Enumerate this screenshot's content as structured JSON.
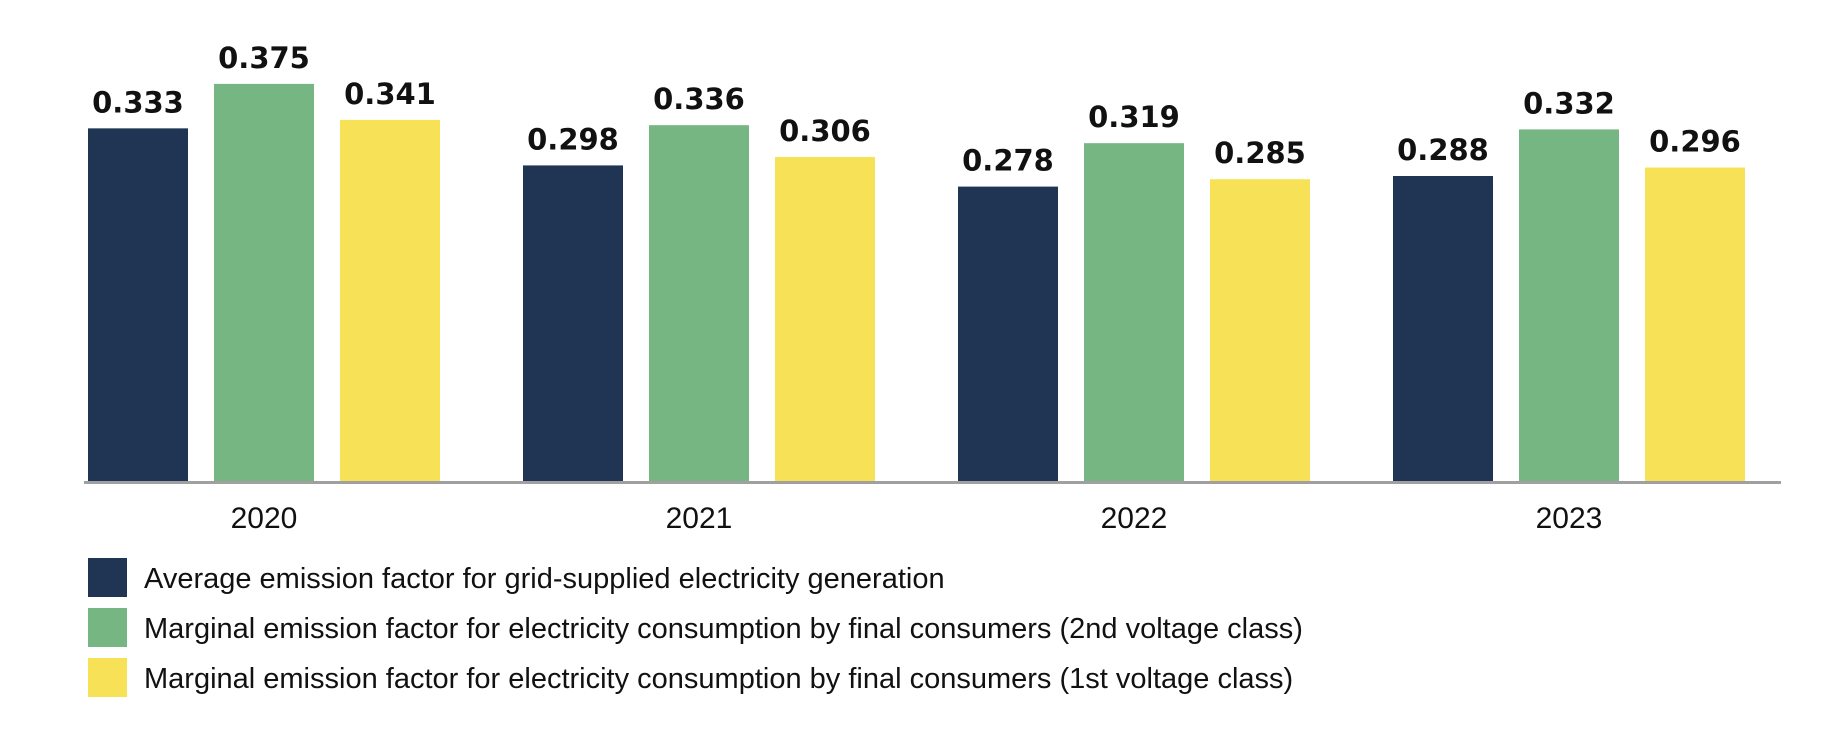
{
  "chart_data": {
    "type": "bar",
    "categories": [
      "2020",
      "2021",
      "2022",
      "2023"
    ],
    "series": [
      {
        "name": "Average emission factor for grid-supplied electricity generation",
        "color": "#203453",
        "values": [
          0.333,
          0.298,
          0.278,
          0.288
        ]
      },
      {
        "name": "Marginal emission factor for electricity consumption by final consumers (2nd voltage class)",
        "color": "#76b682",
        "values": [
          0.375,
          0.336,
          0.319,
          0.332
        ]
      },
      {
        "name": "Marginal emission factor for electricity consumption by final consumers (1st voltage class)",
        "color": "#f7e257",
        "values": [
          0.341,
          0.306,
          0.285,
          0.296
        ]
      }
    ],
    "ylim": [
      0,
      0.42
    ],
    "data_labels": true,
    "grid": false,
    "legend_placement": "bottom-left",
    "axis_color": "#a0a0a0"
  }
}
